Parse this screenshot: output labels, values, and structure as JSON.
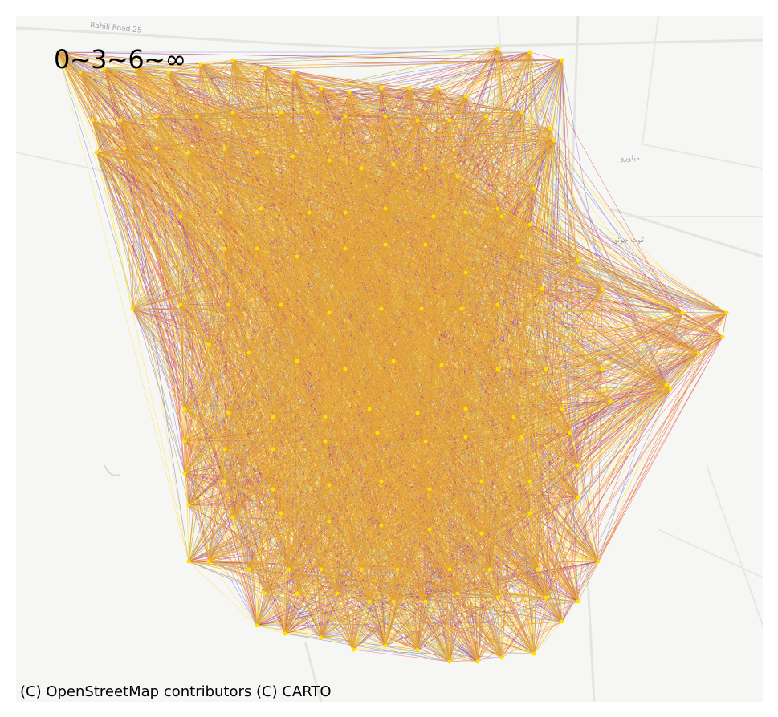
{
  "map": {
    "legend_text": "0~3~6~∞",
    "attribution": "(C) OpenStreetMap contributors (C) CARTO",
    "place_labels": [
      "Rahili Road 25",
      "ميلورو",
      "كوٹ جوٹو"
    ],
    "basemap": "light-gray",
    "colors": {
      "background": "#f6f6f4",
      "road": "#e2e2de",
      "short_trips": "#0000cc",
      "medium_trips": "#dd0000",
      "long_trips": "#ffe000"
    },
    "legend_bins": [
      "0",
      "3",
      "6",
      "∞"
    ]
  }
}
